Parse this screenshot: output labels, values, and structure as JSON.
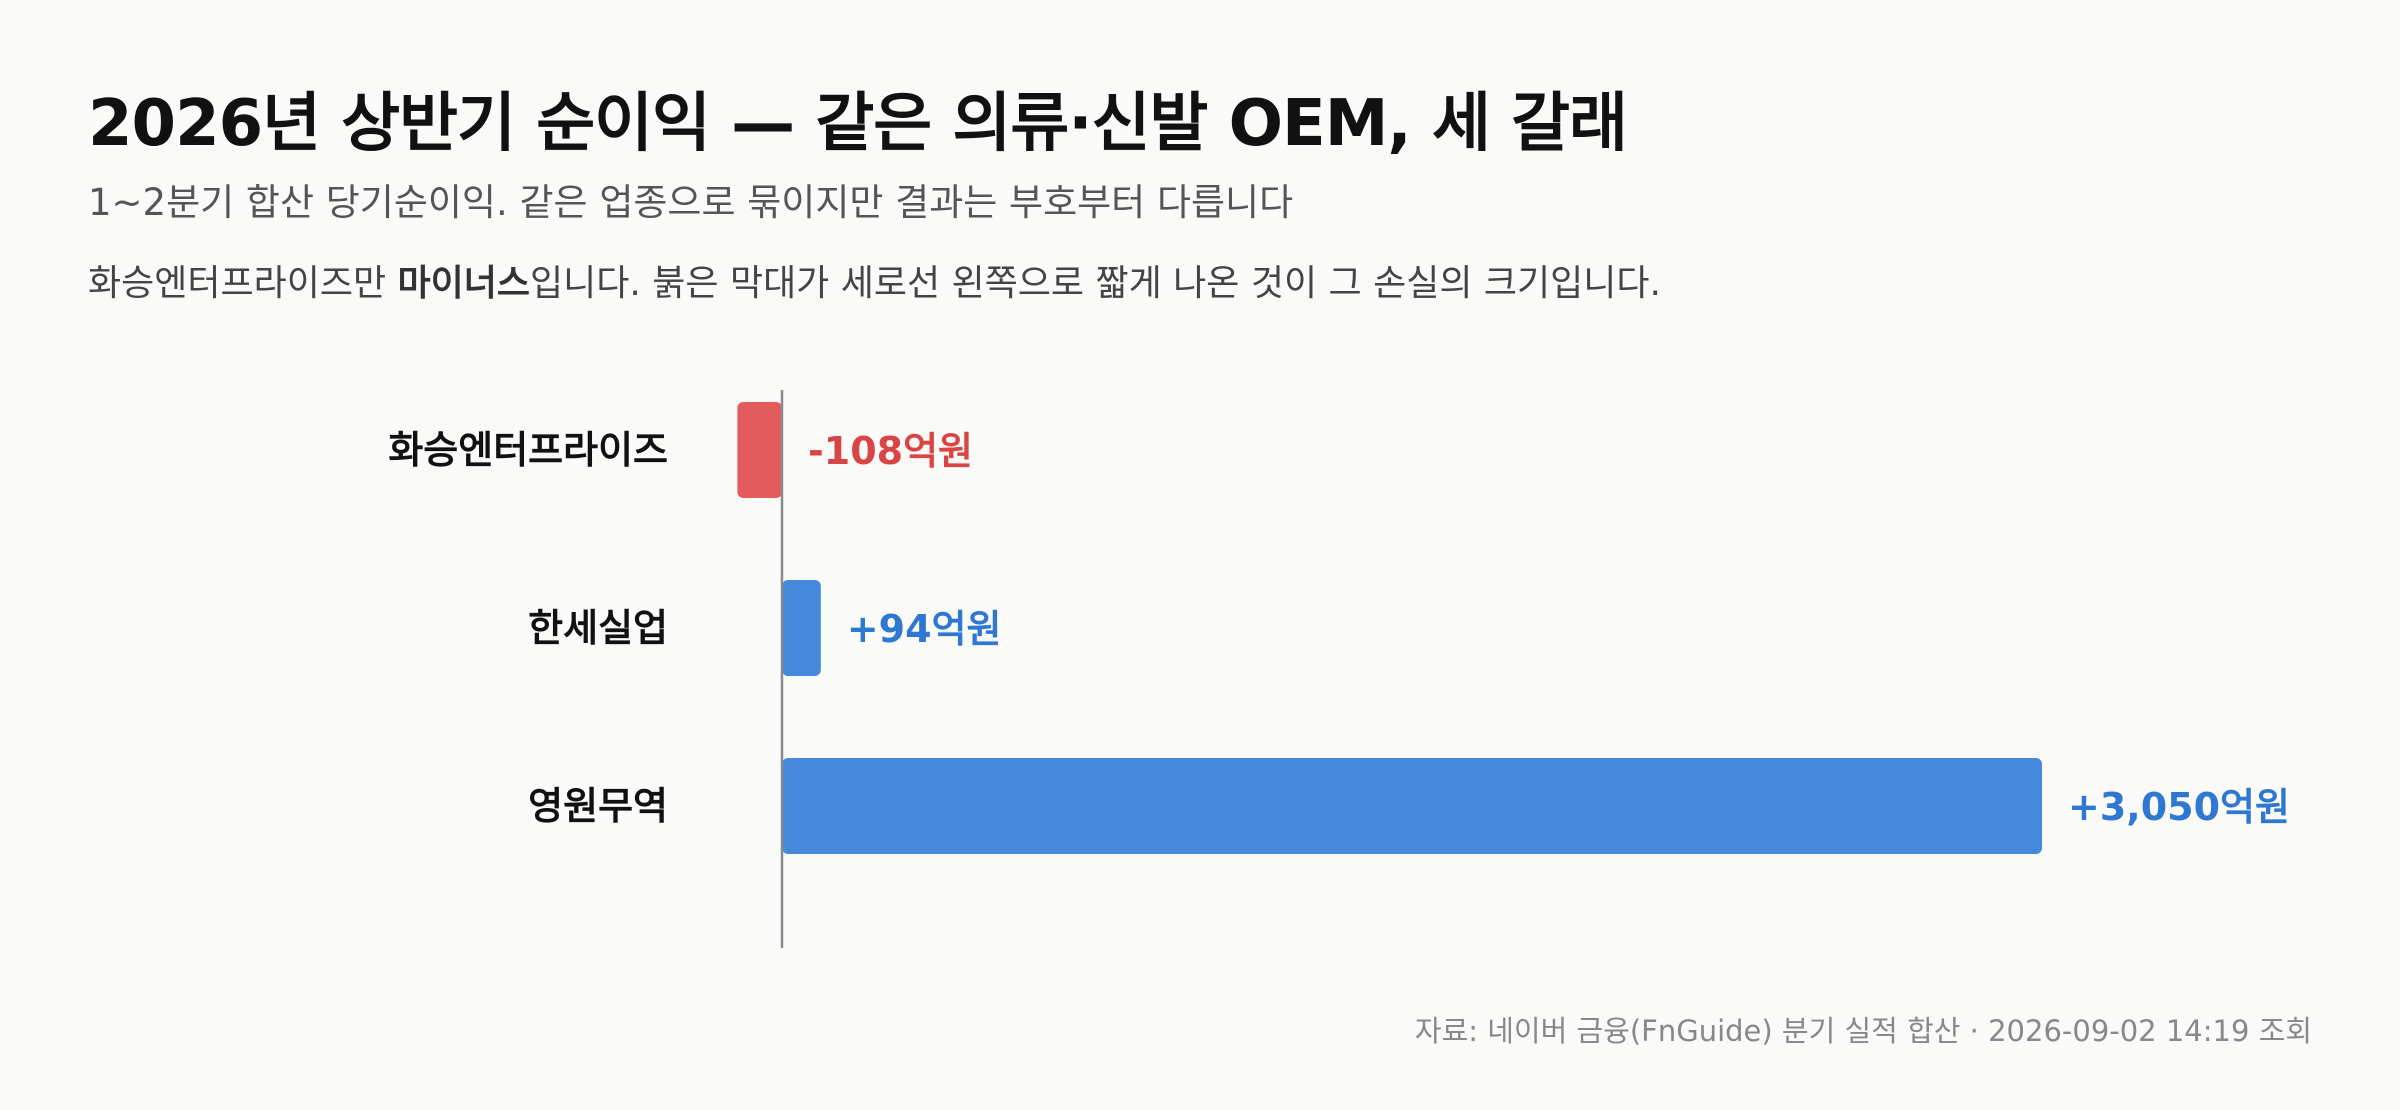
{
  "header": {
    "title": "2026년 상반기 순이익 — 같은 의류·신발 OEM, 세 갈래",
    "subtitle": "1~2분기 합산 당기순이익. 같은 업종으로 묶이지만 결과는 부호부터 다릅니다",
    "note_prefix": "화승엔터프라이즈만 ",
    "note_emphasis": "마이너스",
    "note_suffix": "입니다. 붉은 막대가 세로선 왼쪽으로 짧게 나온 것이 그 손실의 크기입니다."
  },
  "footer": {
    "source": "자료: 네이버 금융(FnGuide) 분기 실적 합산 · 2026-09-02 14:19 조회"
  },
  "colors": {
    "negative": "#e35b5b",
    "positive": "#4589db",
    "negative_label": "#d94545",
    "positive_label": "#2f78d2",
    "axis": "#8a8a8a"
  },
  "chart_data": {
    "type": "bar",
    "orientation": "horizontal",
    "categories": [
      "화승엔터프라이즈",
      "한세실업",
      "영원무역"
    ],
    "values": [
      -108,
      94,
      3050
    ],
    "value_labels": [
      "-108억원",
      "+94억원",
      "+3,050억원"
    ],
    "unit": "억원",
    "zero_line": true,
    "grid": false,
    "legend": "none"
  }
}
